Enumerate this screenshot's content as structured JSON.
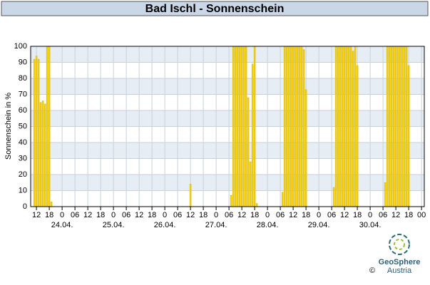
{
  "chart_data": {
    "type": "bar",
    "title": "Bad Ischl - Sonnenschein",
    "y_label": "Sonnenschein in %",
    "x": [
      -13,
      -12,
      -11,
      -10,
      -9,
      -8,
      -7,
      -6,
      -5,
      60,
      79,
      80,
      81,
      82,
      83,
      84,
      85,
      86,
      87,
      88,
      89,
      90,
      91,
      103,
      104,
      105,
      106,
      107,
      108,
      109,
      110,
      111,
      112,
      113,
      114,
      127,
      128,
      129,
      130,
      131,
      132,
      133,
      134,
      135,
      136,
      137,
      138,
      151,
      152,
      153,
      154,
      155,
      156,
      157,
      158,
      159,
      160,
      161,
      162
    ],
    "values": [
      92,
      94,
      92,
      65,
      66,
      64,
      100,
      100,
      3,
      14,
      7,
      100,
      100,
      100,
      100,
      100,
      100,
      100,
      68,
      28,
      89,
      100,
      2,
      9,
      100,
      100,
      100,
      100,
      100,
      100,
      100,
      100,
      100,
      98,
      73,
      12,
      100,
      100,
      100,
      100,
      100,
      100,
      100,
      100,
      97,
      100,
      88,
      15,
      100,
      100,
      100,
      100,
      100,
      100,
      100,
      100,
      100,
      100,
      88
    ],
    "color": "#f5d10f",
    "xlim": [
      -14.7,
      169.3
    ],
    "xticks": [
      {
        "value": -12,
        "label": "12"
      },
      {
        "value": -6,
        "label": "18"
      },
      {
        "value": 0,
        "label": "0"
      },
      {
        "value": 6,
        "label": "06"
      },
      {
        "value": 12,
        "label": "12"
      },
      {
        "value": 18,
        "label": "18"
      },
      {
        "value": 24,
        "label": "0"
      },
      {
        "value": 30,
        "label": "06"
      },
      {
        "value": 36,
        "label": "12"
      },
      {
        "value": 42,
        "label": "18"
      },
      {
        "value": 48,
        "label": "0"
      },
      {
        "value": 54,
        "label": "06"
      },
      {
        "value": 60,
        "label": "12"
      },
      {
        "value": 66,
        "label": "18"
      },
      {
        "value": 72,
        "label": "0"
      },
      {
        "value": 78,
        "label": "06"
      },
      {
        "value": 84,
        "label": "12"
      },
      {
        "value": 90,
        "label": "18"
      },
      {
        "value": 96,
        "label": "0"
      },
      {
        "value": 102,
        "label": "06"
      },
      {
        "value": 108,
        "label": "12"
      },
      {
        "value": 114,
        "label": "18"
      },
      {
        "value": 120,
        "label": "0"
      },
      {
        "value": 126,
        "label": "06"
      },
      {
        "value": 132,
        "label": "12"
      },
      {
        "value": 138,
        "label": "18"
      },
      {
        "value": 144,
        "label": "0"
      },
      {
        "value": 150,
        "label": "06"
      },
      {
        "value": 156,
        "label": "12"
      },
      {
        "value": 162,
        "label": "18"
      },
      {
        "value": 168,
        "label": "00"
      }
    ],
    "date_labels": [
      {
        "value": 0,
        "label": "24.04."
      },
      {
        "value": 24,
        "label": "25.04."
      },
      {
        "value": 48,
        "label": "26.04."
      },
      {
        "value": 72,
        "label": "27.04."
      },
      {
        "value": 96,
        "label": "28.04."
      },
      {
        "value": 120,
        "label": "29.04."
      },
      {
        "value": 144,
        "label": "30.04."
      }
    ],
    "ylim": [
      0,
      100
    ],
    "yticks": [
      0,
      10,
      20,
      30,
      40,
      50,
      60,
      70,
      80,
      90,
      100
    ],
    "grid": true,
    "logo_name": "GeoSphere",
    "logo_sub": "Austria",
    "copyright": "©"
  }
}
